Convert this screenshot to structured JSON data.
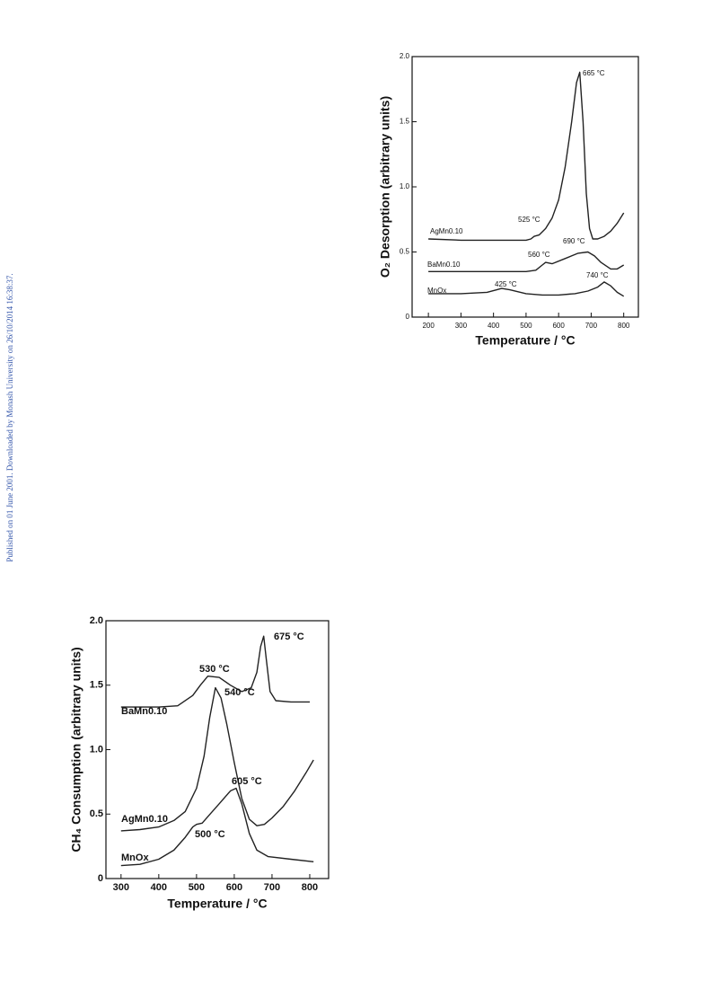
{
  "sidebar": "Published on 01 June 2001. Downloaded by Monash University on 26/10/2014 16:38:37.",
  "chart_data": [
    {
      "type": "line",
      "xlabel": "Temperature / °C",
      "ylabel": "O₂ Desorption (arbitrary units)",
      "xlim": [
        150,
        845
      ],
      "ylim": [
        0,
        2.0
      ],
      "xticks": [
        200,
        300,
        400,
        500,
        600,
        700,
        800
      ],
      "yticks": [
        0,
        0.5,
        {
          "value": 1.0,
          "label": "1.0"
        },
        1.5,
        {
          "value": 2.0,
          "label": "2.0"
        }
      ],
      "series": [
        {
          "name": "AgMn0.10",
          "color": "#222222",
          "x": [
            200,
            300,
            400,
            500,
            515,
            525,
            540,
            560,
            580,
            600,
            620,
            640,
            655,
            665,
            675,
            685,
            695,
            705,
            720,
            740,
            760,
            780,
            800
          ],
          "values": [
            0.6,
            0.59,
            0.59,
            0.59,
            0.6,
            0.62,
            0.63,
            0.68,
            0.76,
            0.9,
            1.15,
            1.5,
            1.8,
            1.88,
            1.5,
            0.95,
            0.68,
            0.6,
            0.6,
            0.62,
            0.66,
            0.72,
            0.8
          ]
        },
        {
          "name": "BaMn0.10",
          "color": "#222222",
          "x": [
            200,
            300,
            400,
            500,
            530,
            550,
            560,
            580,
            620,
            660,
            690,
            710,
            730,
            760,
            780,
            800
          ],
          "values": [
            0.35,
            0.35,
            0.35,
            0.35,
            0.36,
            0.4,
            0.42,
            0.41,
            0.45,
            0.49,
            0.5,
            0.47,
            0.42,
            0.37,
            0.37,
            0.4
          ]
        },
        {
          "name": "MnOx",
          "color": "#222222",
          "x": [
            200,
            300,
            380,
            410,
            425,
            450,
            500,
            550,
            600,
            650,
            690,
            720,
            740,
            760,
            780,
            800
          ],
          "values": [
            0.18,
            0.18,
            0.19,
            0.21,
            0.22,
            0.21,
            0.18,
            0.17,
            0.17,
            0.18,
            0.2,
            0.23,
            0.27,
            0.24,
            0.19,
            0.16
          ]
        }
      ],
      "annotations": [
        "665 °C",
        "525 °C",
        "560 °C",
        "690 °C",
        "425 °C",
        "740 °C"
      ]
    },
    {
      "type": "line",
      "xlabel": "Temperature / °C",
      "ylabel": "CH₄ Consumption (arbitrary units)",
      "xlim": [
        260,
        850
      ],
      "ylim": [
        0,
        2.0
      ],
      "xticks": [
        300,
        400,
        500,
        600,
        700,
        800
      ],
      "yticks": [
        0,
        0.5,
        {
          "value": 1.0,
          "label": "1.0"
        },
        1.5,
        {
          "value": 2.0,
          "label": "2.0"
        }
      ],
      "series": [
        {
          "name": "BaMn0.10",
          "color": "#222222",
          "x": [
            300,
            400,
            450,
            490,
            510,
            530,
            560,
            590,
            620,
            645,
            660,
            670,
            678,
            685,
            695,
            710,
            750,
            800
          ],
          "values": [
            1.33,
            1.33,
            1.34,
            1.42,
            1.5,
            1.57,
            1.56,
            1.5,
            1.45,
            1.48,
            1.6,
            1.8,
            1.88,
            1.7,
            1.45,
            1.38,
            1.37,
            1.37
          ]
        },
        {
          "name": "AgMn0.10",
          "color": "#222222",
          "x": [
            300,
            350,
            400,
            440,
            470,
            500,
            520,
            535,
            550,
            565,
            580,
            600,
            620,
            640,
            660,
            680,
            700,
            730,
            760,
            790,
            810
          ],
          "values": [
            0.37,
            0.38,
            0.4,
            0.45,
            0.52,
            0.7,
            0.95,
            1.25,
            1.48,
            1.4,
            1.2,
            0.9,
            0.62,
            0.46,
            0.41,
            0.42,
            0.47,
            0.56,
            0.68,
            0.82,
            0.92
          ]
        },
        {
          "name": "MnOx",
          "color": "#222222",
          "x": [
            300,
            350,
            400,
            440,
            470,
            490,
            500,
            515,
            530,
            560,
            590,
            605,
            620,
            640,
            660,
            690,
            750,
            810
          ],
          "values": [
            0.1,
            0.11,
            0.15,
            0.22,
            0.32,
            0.4,
            0.42,
            0.43,
            0.48,
            0.58,
            0.68,
            0.7,
            0.58,
            0.35,
            0.22,
            0.17,
            0.15,
            0.13
          ]
        }
      ],
      "annotations": [
        "675 °C",
        "530 °C",
        "540 °C",
        "605 °C",
        "500 °C"
      ]
    }
  ]
}
